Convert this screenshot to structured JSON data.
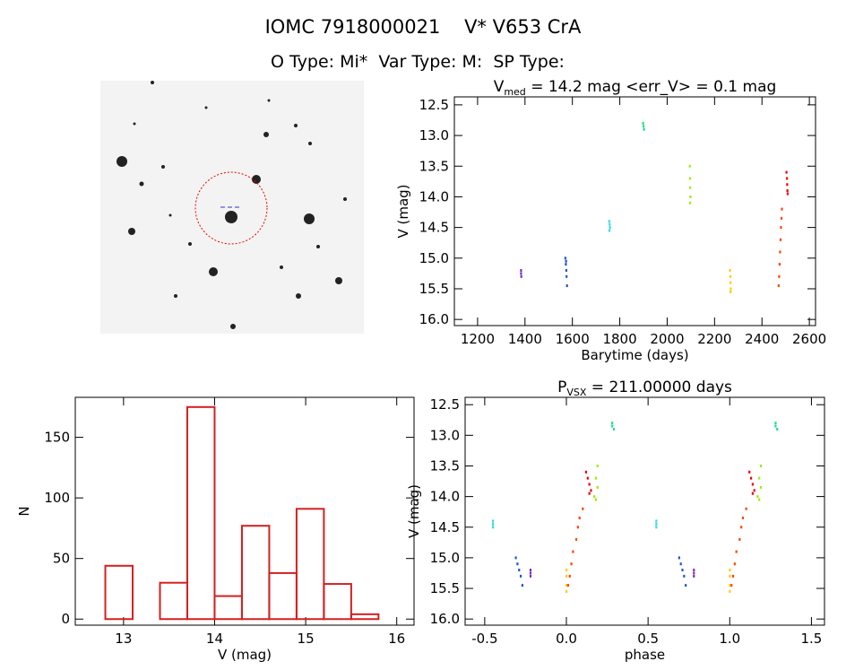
{
  "header": {
    "title": "IOMC 7918000021    V* V653 CrA",
    "subtitle": "O Type: Mi*  Var Type: M:  SP Type:"
  },
  "chart_data": [
    {
      "type": "scatter",
      "title_parts": [
        "V",
        "med",
        " = 14.2 mag <err_V> = 0.1 mag"
      ],
      "x_label": "Barytime (days)",
      "y_label": "V (mag)",
      "xlim": [
        1102,
        2626
      ],
      "ylim": [
        16.1,
        12.37
      ],
      "xticks": [
        1200,
        1400,
        1600,
        1800,
        2000,
        2200,
        2400,
        2600
      ],
      "yticks": [
        12.5,
        {
          "value": 13,
          "label": "13.0"
        },
        13.5,
        {
          "value": 14,
          "label": "14.0"
        },
        14.5,
        {
          "value": 15,
          "label": "15.0"
        },
        15.5,
        {
          "value": 16,
          "label": "16.0"
        }
      ],
      "series": [
        {
          "color": "#7b2fbe",
          "x": [
            1383,
            1383,
            1384
          ],
          "values": [
            15.2,
            15.25,
            15.3
          ]
        },
        {
          "color": "#2255cc",
          "x": [
            1570,
            1572,
            1574,
            1575,
            1577,
            1573
          ],
          "values": [
            15.0,
            15.1,
            15.2,
            15.3,
            15.45,
            15.05
          ]
        },
        {
          "color": "#33dddd",
          "x": [
            1755,
            1757,
            1758,
            1756
          ],
          "values": [
            14.4,
            14.45,
            14.5,
            14.55
          ]
        },
        {
          "color": "#22dd88",
          "x": [
            1898,
            1900,
            1902
          ],
          "values": [
            12.8,
            12.85,
            12.9
          ]
        },
        {
          "color": "#99ee11",
          "x": [
            2095,
            2096,
            2097,
            2098,
            2096
          ],
          "values": [
            13.5,
            13.7,
            13.85,
            14.0,
            14.1
          ]
        },
        {
          "color": "#ffcc00",
          "x": [
            2265,
            2266,
            2267,
            2268,
            2267
          ],
          "values": [
            15.2,
            15.3,
            15.4,
            15.5,
            15.55
          ]
        },
        {
          "color": "#ff4400",
          "x": [
            2470,
            2472,
            2474,
            2476,
            2478,
            2480,
            2482,
            2484
          ],
          "values": [
            15.45,
            15.3,
            15.1,
            14.9,
            14.7,
            14.5,
            14.35,
            14.2
          ]
        },
        {
          "color": "#ee0000",
          "x": [
            2503,
            2505,
            2506,
            2507,
            2508
          ],
          "values": [
            13.6,
            13.7,
            13.8,
            13.9,
            13.95
          ]
        }
      ]
    },
    {
      "type": "histogram",
      "x_label": "V (mag)",
      "y_label": "N",
      "color": "#d42020",
      "bins": [
        12.8,
        13.1,
        13.4,
        13.7,
        14.0,
        14.3,
        14.6,
        14.9,
        15.2,
        15.5,
        15.8
      ],
      "values": [
        44,
        0,
        30,
        175,
        19,
        77,
        38,
        91,
        29,
        4
      ],
      "xlim": [
        12.47,
        16.19
      ],
      "ylim": [
        -5,
        183
      ],
      "xticks": [
        13,
        14,
        15,
        16
      ],
      "yticks": [
        0,
        50,
        100,
        150
      ]
    },
    {
      "type": "scatter",
      "title_parts": [
        "P",
        "VSX",
        " = 211.00000 days"
      ],
      "x_label": "phase",
      "y_label": "V (mag)",
      "xlim": [
        -0.62,
        1.58
      ],
      "ylim": [
        16.1,
        12.38
      ],
      "xticks": [
        -0.5,
        {
          "value": 0,
          "label": "0.0"
        },
        0.5,
        {
          "value": 1,
          "label": "1.0"
        },
        1.5
      ],
      "yticks": [
        12.5,
        {
          "value": 13,
          "label": "13.0"
        },
        13.5,
        {
          "value": 14,
          "label": "14.0"
        },
        14.5,
        {
          "value": 15,
          "label": "15.0"
        },
        15.5,
        {
          "value": 16,
          "label": "16.0"
        }
      ],
      "series": [
        {
          "color": "#7b2fbe",
          "x": [
            -0.22,
            -0.22,
            -0.22,
            0.78,
            0.78,
            0.78
          ],
          "values": [
            15.2,
            15.25,
            15.3,
            15.2,
            15.25,
            15.3
          ]
        },
        {
          "color": "#2255cc",
          "x": [
            -0.31,
            -0.3,
            -0.29,
            -0.28,
            -0.27,
            0.69,
            0.7,
            0.71,
            0.72,
            0.73
          ],
          "values": [
            15.0,
            15.1,
            15.2,
            15.3,
            15.45,
            15.0,
            15.1,
            15.2,
            15.3,
            15.45
          ]
        },
        {
          "color": "#33dddd",
          "x": [
            -0.45,
            -0.45,
            -0.45,
            0.55,
            0.55,
            0.55
          ],
          "values": [
            14.4,
            14.45,
            14.5,
            14.4,
            14.45,
            14.5
          ]
        },
        {
          "color": "#22dd88",
          "x": [
            0.28,
            0.28,
            0.29,
            1.28,
            1.28,
            1.29
          ],
          "values": [
            12.8,
            12.85,
            12.9,
            12.8,
            12.85,
            12.9
          ]
        },
        {
          "color": "#99ee11",
          "x": [
            0.19,
            0.18,
            0.19,
            0.17,
            0.18,
            1.19,
            1.18,
            1.19,
            1.17,
            1.18
          ],
          "values": [
            13.5,
            13.7,
            13.85,
            14.0,
            14.05,
            13.5,
            13.7,
            13.85,
            14.0,
            14.05
          ]
        },
        {
          "color": "#ffcc00",
          "x": [
            0.0,
            0.0,
            0.0,
            0.0,
            1.0,
            1.0,
            1.0,
            1.0
          ],
          "values": [
            15.2,
            15.3,
            15.45,
            15.55,
            15.2,
            15.3,
            15.45,
            15.55
          ]
        },
        {
          "color": "#ff4400",
          "x": [
            0.01,
            0.02,
            0.03,
            0.04,
            0.06,
            0.07,
            0.08,
            0.1,
            1.01,
            1.02,
            1.03,
            1.04,
            1.06,
            1.07,
            1.08,
            1.1
          ],
          "values": [
            15.45,
            15.3,
            15.1,
            14.9,
            14.7,
            14.5,
            14.35,
            14.2,
            15.45,
            15.3,
            15.1,
            14.9,
            14.7,
            14.5,
            14.35,
            14.2
          ]
        },
        {
          "color": "#ee0000",
          "x": [
            0.12,
            0.13,
            0.14,
            0.15,
            0.14,
            1.12,
            1.13,
            1.14,
            1.15,
            1.14
          ],
          "values": [
            13.6,
            13.7,
            13.8,
            13.9,
            13.95,
            13.6,
            13.7,
            13.8,
            13.9,
            13.95
          ]
        }
      ]
    }
  ]
}
